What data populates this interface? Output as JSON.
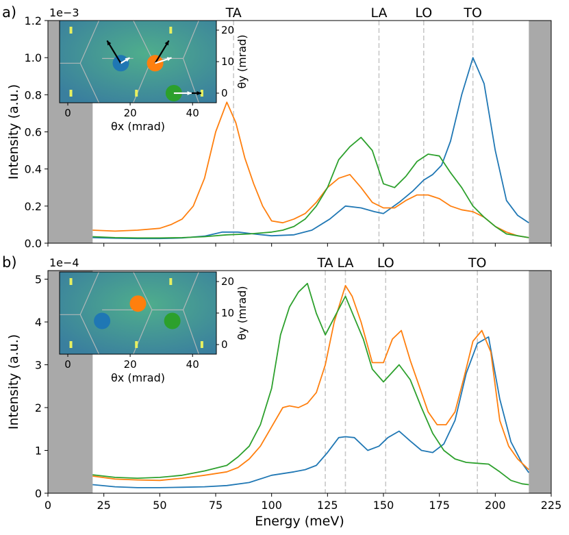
{
  "chart_data": [
    {
      "panel_label": "a)",
      "type": "line",
      "exponent_label": "1e−3",
      "ylabel": "Intensity (a.u.)",
      "xlim": [
        0,
        225
      ],
      "ylim": [
        0,
        1.2
      ],
      "yticks": [
        0.0,
        0.2,
        0.4,
        0.6,
        0.8,
        1.0,
        1.2
      ],
      "ytick_labels": [
        "0.0",
        "0.2",
        "0.4",
        "0.6",
        "0.8",
        "1.0",
        "1.2"
      ],
      "shaded_ranges": [
        [
          0,
          20
        ],
        [
          215,
          225
        ]
      ],
      "mode_lines": [
        {
          "label": "TA",
          "x": 83
        },
        {
          "label": "LA",
          "x": 148
        },
        {
          "label": "LO",
          "x": 168
        },
        {
          "label": "TO",
          "x": 190
        }
      ],
      "series": [
        {
          "color": "#1f77b4",
          "x": [
            20,
            30,
            40,
            50,
            60,
            70,
            78,
            85,
            92,
            100,
            110,
            118,
            126,
            133,
            140,
            146,
            150,
            157,
            163,
            168,
            172,
            176,
            180,
            185,
            190,
            195,
            200,
            205,
            210,
            215
          ],
          "y": [
            0.03,
            0.027,
            0.025,
            0.025,
            0.028,
            0.038,
            0.06,
            0.06,
            0.05,
            0.04,
            0.045,
            0.07,
            0.13,
            0.2,
            0.19,
            0.17,
            0.16,
            0.22,
            0.28,
            0.34,
            0.37,
            0.42,
            0.55,
            0.8,
            1.0,
            0.86,
            0.5,
            0.23,
            0.15,
            0.11
          ]
        },
        {
          "color": "#ff7f0e",
          "x": [
            20,
            30,
            40,
            50,
            55,
            60,
            65,
            70,
            75,
            80,
            84,
            88,
            92,
            96,
            100,
            105,
            110,
            115,
            120,
            125,
            130,
            135,
            140,
            145,
            150,
            155,
            160,
            165,
            170,
            175,
            180,
            185,
            190,
            195,
            200,
            205,
            210,
            215
          ],
          "y": [
            0.07,
            0.065,
            0.07,
            0.08,
            0.1,
            0.13,
            0.2,
            0.35,
            0.6,
            0.76,
            0.65,
            0.46,
            0.32,
            0.2,
            0.12,
            0.11,
            0.13,
            0.16,
            0.22,
            0.3,
            0.35,
            0.37,
            0.3,
            0.22,
            0.19,
            0.19,
            0.23,
            0.26,
            0.26,
            0.24,
            0.2,
            0.18,
            0.17,
            0.14,
            0.09,
            0.06,
            0.04,
            0.03
          ]
        },
        {
          "color": "#2ca02c",
          "x": [
            20,
            30,
            40,
            50,
            60,
            70,
            80,
            90,
            100,
            105,
            110,
            115,
            120,
            125,
            130,
            135,
            140,
            145,
            150,
            155,
            160,
            165,
            170,
            175,
            180,
            185,
            190,
            195,
            200,
            205,
            210,
            215
          ],
          "y": [
            0.035,
            0.03,
            0.028,
            0.028,
            0.03,
            0.035,
            0.045,
            0.05,
            0.06,
            0.07,
            0.09,
            0.13,
            0.2,
            0.3,
            0.45,
            0.52,
            0.57,
            0.5,
            0.32,
            0.3,
            0.36,
            0.44,
            0.48,
            0.47,
            0.38,
            0.3,
            0.2,
            0.14,
            0.09,
            0.05,
            0.04,
            0.03
          ]
        }
      ],
      "inset": {
        "xlabel": "θx (mrad)",
        "ylabel": "θy (mrad)",
        "xticks": [
          "0",
          "20",
          "40"
        ],
        "yticks": [
          "0",
          "10",
          "20"
        ],
        "markers": [
          {
            "color": "#1f77b4",
            "x": 17,
            "y": 9.5
          },
          {
            "color": "#ff7f0e",
            "x": 28,
            "y": 9.5
          },
          {
            "color": "#2ca02c",
            "x": 34,
            "y": 0
          }
        ]
      }
    },
    {
      "panel_label": "b)",
      "type": "line",
      "exponent_label": "1e−4",
      "ylabel": "Intensity (a.u.)",
      "xlabel": "Energy (meV)",
      "xlim": [
        0,
        225
      ],
      "ylim": [
        0,
        5.2
      ],
      "xticks": [
        0,
        25,
        50,
        75,
        100,
        125,
        150,
        175,
        200,
        225
      ],
      "xtick_labels": [
        "0",
        "25",
        "50",
        "75",
        "100",
        "125",
        "150",
        "175",
        "200",
        "225"
      ],
      "yticks": [
        0,
        1,
        2,
        3,
        4,
        5
      ],
      "ytick_labels": [
        "0",
        "1",
        "2",
        "3",
        "4",
        "5"
      ],
      "shaded_ranges": [
        [
          0,
          20
        ],
        [
          215,
          225
        ]
      ],
      "mode_lines": [
        {
          "label": "TA",
          "x": 124
        },
        {
          "label": "LA",
          "x": 133
        },
        {
          "label": "LO",
          "x": 151
        },
        {
          "label": "TO",
          "x": 192
        }
      ],
      "series": [
        {
          "color": "#1f77b4",
          "x": [
            20,
            30,
            40,
            50,
            60,
            70,
            80,
            90,
            100,
            110,
            115,
            120,
            125,
            130,
            133,
            137,
            143,
            148,
            152,
            157,
            162,
            167,
            172,
            177,
            182,
            187,
            192,
            197,
            202,
            207,
            212,
            215
          ],
          "y": [
            0.2,
            0.15,
            0.13,
            0.13,
            0.14,
            0.15,
            0.18,
            0.25,
            0.42,
            0.5,
            0.55,
            0.65,
            0.95,
            1.3,
            1.32,
            1.3,
            1.0,
            1.1,
            1.3,
            1.45,
            1.22,
            1.0,
            0.95,
            1.15,
            1.7,
            2.8,
            3.5,
            3.65,
            2.2,
            1.2,
            0.7,
            0.48
          ]
        },
        {
          "color": "#ff7f0e",
          "x": [
            20,
            30,
            40,
            50,
            60,
            70,
            80,
            85,
            90,
            95,
            100,
            105,
            108,
            112,
            116,
            120,
            124,
            128,
            133,
            136,
            140,
            145,
            150,
            154,
            158,
            162,
            166,
            170,
            174,
            178,
            182,
            186,
            190,
            194,
            198,
            202,
            206,
            210,
            215
          ],
          "y": [
            0.4,
            0.33,
            0.31,
            0.3,
            0.35,
            0.42,
            0.5,
            0.6,
            0.8,
            1.1,
            1.55,
            2.0,
            2.04,
            2.0,
            2.1,
            2.35,
            3.0,
            4.0,
            4.85,
            4.6,
            4.0,
            3.05,
            3.05,
            3.6,
            3.8,
            3.1,
            2.5,
            1.9,
            1.6,
            1.6,
            1.9,
            2.7,
            3.55,
            3.8,
            3.3,
            1.7,
            1.1,
            0.8,
            0.55
          ]
        },
        {
          "color": "#2ca02c",
          "x": [
            20,
            30,
            40,
            50,
            60,
            70,
            80,
            85,
            90,
            95,
            100,
            104,
            108,
            112,
            116,
            120,
            124,
            128,
            133,
            137,
            141,
            145,
            150,
            157,
            162,
            167,
            172,
            177,
            182,
            187,
            192,
            197,
            202,
            207,
            212,
            215
          ],
          "y": [
            0.43,
            0.37,
            0.35,
            0.37,
            0.42,
            0.52,
            0.65,
            0.85,
            1.1,
            1.6,
            2.45,
            3.7,
            4.35,
            4.7,
            4.9,
            4.2,
            3.7,
            4.1,
            4.6,
            4.1,
            3.6,
            2.9,
            2.6,
            3.0,
            2.65,
            2.0,
            1.4,
            1.0,
            0.8,
            0.72,
            0.7,
            0.68,
            0.5,
            0.3,
            0.22,
            0.2
          ]
        }
      ],
      "inset": {
        "xlabel": "θx (mrad)",
        "ylabel": "θy (mrad)",
        "xticks": [
          "0",
          "20",
          "40"
        ],
        "yticks": [
          "0",
          "10",
          "20"
        ],
        "markers": [
          {
            "color": "#1f77b4",
            "x": 11,
            "y": 7.5
          },
          {
            "color": "#ff7f0e",
            "x": 22.5,
            "y": 13
          },
          {
            "color": "#2ca02c",
            "x": 33.5,
            "y": 7.5
          }
        ]
      }
    }
  ]
}
